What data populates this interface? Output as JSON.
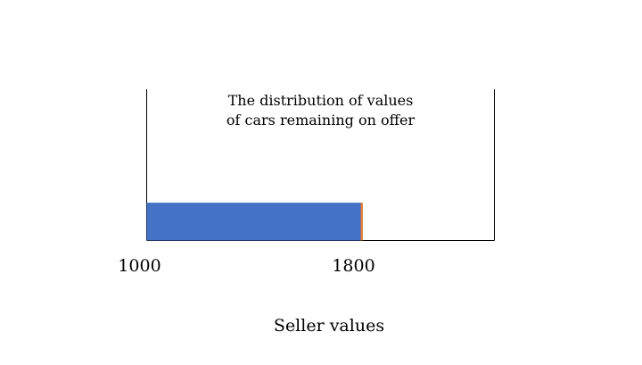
{
  "chart_data": {
    "type": "bar",
    "orientation": "horizontal",
    "title_lines": [
      "The distribution of values",
      "of cars remaining on offer"
    ],
    "xlabel": "Seller values",
    "ylabel": "",
    "xlim": [
      1000,
      2300
    ],
    "ticks": [
      {
        "value": 1000,
        "label": "1000"
      },
      {
        "value": 1800,
        "label": "1800"
      }
    ],
    "bars": [
      {
        "from": 1000,
        "to": 1800,
        "color": "#4472c4"
      },
      {
        "from": 1800,
        "to": 1808,
        "color": "#e07b3c"
      }
    ],
    "bar_share_of_height": 0.25,
    "frame_sides": [
      "left",
      "right",
      "bottom"
    ],
    "grid": false,
    "legend": "none"
  }
}
